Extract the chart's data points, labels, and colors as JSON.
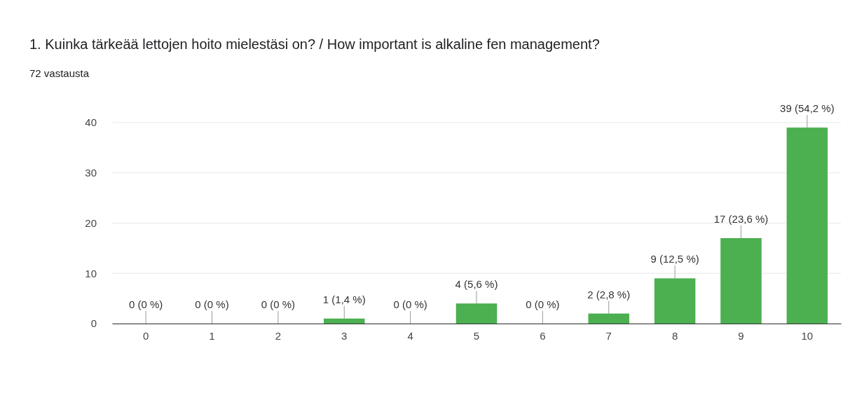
{
  "chart_data": {
    "type": "bar",
    "title": "1. Kuinka tärkeää lettojen hoito mielestäsi on? / How important is alkaline fen management?",
    "subtitle": "72 vastausta",
    "categories": [
      "0",
      "1",
      "2",
      "3",
      "4",
      "5",
      "6",
      "7",
      "8",
      "9",
      "10"
    ],
    "values": [
      0,
      0,
      0,
      1,
      0,
      4,
      0,
      2,
      9,
      17,
      39
    ],
    "value_labels": [
      "0 (0 %)",
      "0 (0 %)",
      "0 (0 %)",
      "1 (1,4 %)",
      "0 (0 %)",
      "4 (5,6 %)",
      "0 (0 %)",
      "2 (2,8 %)",
      "9 (12,5 %)",
      "17 (23,6 %)",
      "39 (54,2 %)"
    ],
    "color": "#4caf50",
    "ylim": [
      0,
      40
    ],
    "yticks": [
      0,
      10,
      20,
      30,
      40
    ],
    "grid": "y"
  }
}
